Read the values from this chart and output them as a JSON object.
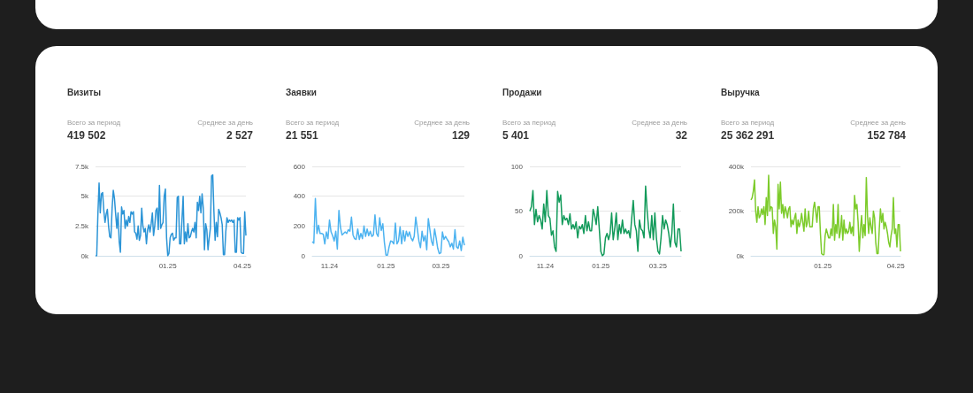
{
  "chart_data": [
    {
      "type": "line",
      "title": "Визиты",
      "annotations": [
        "Всего за период",
        "419 502",
        "Среднее за день",
        "2 527"
      ],
      "grid": "y",
      "ylim": [
        0,
        7500
      ],
      "yticks": [
        {
          "value": 0,
          "label": "0k"
        },
        {
          "value": 2500,
          "label": "2.5k"
        },
        {
          "value": 5000,
          "label": "5k"
        },
        {
          "value": 7500,
          "label": "7.5k"
        }
      ],
      "categories": [
        null,
        null,
        null,
        null,
        null,
        null,
        null,
        null,
        null,
        null,
        null,
        null,
        null,
        null,
        null,
        null,
        null,
        null,
        null,
        null,
        null,
        null,
        null,
        null,
        null,
        null,
        null,
        null,
        null,
        null,
        null,
        null,
        null,
        null,
        null,
        null,
        null,
        null,
        null,
        null,
        null,
        null,
        null,
        null,
        null,
        null,
        null,
        null,
        null,
        null,
        null,
        null,
        null,
        null,
        null,
        null,
        null,
        null,
        null,
        null,
        null,
        "01.25",
        null,
        null,
        null,
        null,
        null,
        null,
        null,
        null,
        null,
        null,
        null,
        null,
        null,
        null,
        null,
        null,
        null,
        null,
        null,
        null,
        null,
        null,
        null,
        null,
        null,
        null,
        null,
        null,
        null,
        null,
        null,
        null,
        null,
        null,
        null,
        null,
        null,
        null,
        null,
        null,
        null,
        null,
        null,
        null,
        null,
        null,
        null,
        null,
        null,
        null,
        null,
        null,
        null,
        null,
        null,
        null,
        null,
        null,
        null,
        null,
        null,
        null,
        "04.25",
        null,
        null,
        null
      ],
      "series": [
        {
          "color": "#2b94d6",
          "values": [
            0,
            0,
            3500,
            6100,
            3600,
            5200,
            5300,
            3800,
            2800,
            3500,
            3900,
            2500,
            1600,
            1500,
            4000,
            5500,
            4800,
            3500,
            2300,
            3600,
            1200,
            300,
            4100,
            3500,
            3800,
            2300,
            3000,
            2500,
            3300,
            2800,
            3700,
            3500,
            3700,
            2000,
            1900,
            1400,
            2500,
            1300,
            1700,
            4000,
            2500,
            2000,
            2300,
            1000,
            2200,
            2600,
            2000,
            2700,
            3600,
            1700,
            2500,
            3800,
            4000,
            2200,
            5900,
            2300,
            2600,
            2800,
            5000,
            5600,
            1500,
            0,
            200,
            1500,
            1800,
            1900,
            1300,
            1500,
            1500,
            4900,
            5000,
            1000,
            1000,
            3000,
            5000,
            1000,
            2000,
            1200,
            2700,
            1500,
            1600,
            2000,
            2300,
            2000,
            2800,
            1500,
            4500,
            3800,
            5000,
            3600,
            5200,
            4000,
            500,
            2700,
            2200,
            500,
            1500,
            2300,
            6700,
            6800,
            3700,
            1300,
            2800,
            1600,
            3900,
            3600,
            3200,
            2600,
            100,
            100,
            2000,
            3200,
            2800,
            3000,
            2900,
            3000,
            2800,
            3000,
            300,
            300,
            3200,
            3000,
            3200,
            300,
            200,
            200,
            3700,
            1700
          ]
        }
      ]
    },
    {
      "type": "line",
      "title": "Заявки",
      "annotations": [
        "Всего за период",
        "21 551",
        "Среднее за день",
        "129"
      ],
      "grid": "y",
      "ylim": [
        0,
        600
      ],
      "yticks": [
        0,
        200,
        400,
        600
      ],
      "categories": [
        null,
        null,
        null,
        null,
        null,
        null,
        null,
        null,
        null,
        null,
        null,
        "11.24",
        null,
        null,
        null,
        null,
        null,
        null,
        null,
        null,
        null,
        null,
        null,
        null,
        null,
        null,
        null,
        null,
        null,
        null,
        null,
        null,
        null,
        null,
        null,
        null,
        null,
        null,
        null,
        null,
        null,
        null,
        null,
        null,
        null,
        null,
        null,
        "01.25",
        null,
        null,
        null,
        null,
        null,
        null,
        null,
        null,
        null,
        null,
        null,
        null,
        null,
        null,
        null,
        null,
        null,
        null,
        null,
        null,
        null,
        null,
        null,
        null,
        null,
        null,
        null,
        null,
        null,
        null,
        null,
        null,
        null,
        null,
        "03.25",
        null,
        null,
        null,
        null,
        null,
        null,
        null,
        null,
        null,
        null,
        null,
        null,
        null,
        null,
        null
      ],
      "series": [
        {
          "color": "#4db3f0",
          "values": [
            95,
            85,
            385,
            150,
            205,
            150,
            150,
            145,
            80,
            160,
            115,
            240,
            160,
            135,
            100,
            165,
            45,
            305,
            190,
            140,
            150,
            160,
            150,
            175,
            165,
            260,
            140,
            115,
            110,
            180,
            110,
            150,
            115,
            200,
            130,
            180,
            135,
            165,
            130,
            140,
            275,
            150,
            130,
            255,
            170,
            215,
            90,
            5,
            5,
            60,
            100,
            95,
            80,
            220,
            80,
            100,
            195,
            80,
            170,
            100,
            165,
            130,
            160,
            120,
            100,
            130,
            260,
            180,
            100,
            55,
            165,
            100,
            135,
            40,
            250,
            175,
            100,
            70,
            180,
            120,
            50,
            15,
            20,
            160,
            110,
            130,
            110,
            95,
            60,
            85,
            45,
            175,
            60,
            50,
            100,
            35,
            125,
            70
          ]
        }
      ]
    },
    {
      "type": "line",
      "title": "Продажи",
      "annotations": [
        "Всего за период",
        "5 401",
        "Среднее за день",
        "32"
      ],
      "grid": "y",
      "ylim": [
        0,
        100
      ],
      "yticks": [
        0,
        50,
        100
      ],
      "categories": [
        null,
        null,
        null,
        null,
        null,
        null,
        null,
        null,
        null,
        null,
        "11.24",
        null,
        null,
        null,
        null,
        null,
        null,
        null,
        null,
        null,
        null,
        null,
        null,
        null,
        null,
        null,
        null,
        null,
        null,
        null,
        null,
        null,
        null,
        null,
        null,
        null,
        null,
        null,
        null,
        null,
        null,
        null,
        null,
        null,
        null,
        null,
        "01.25",
        null,
        null,
        null,
        null,
        null,
        null,
        null,
        null,
        null,
        null,
        null,
        null,
        null,
        null,
        null,
        null,
        null,
        null,
        null,
        null,
        null,
        null,
        null,
        null,
        null,
        null,
        null,
        null,
        null,
        null,
        null,
        null,
        null,
        null,
        null,
        null,
        "03.25",
        null,
        null,
        null,
        null,
        null,
        null,
        null,
        null,
        null,
        null,
        null,
        null,
        null,
        null,
        null
      ],
      "series": [
        {
          "color": "#129a5a",
          "values": [
            50,
            55,
            73,
            35,
            52,
            38,
            45,
            40,
            30,
            58,
            38,
            73,
            45,
            42,
            23,
            28,
            10,
            5,
            72,
            60,
            68,
            35,
            45,
            40,
            42,
            35,
            47,
            30,
            35,
            30,
            38,
            20,
            33,
            30,
            35,
            25,
            45,
            28,
            38,
            28,
            28,
            52,
            45,
            35,
            55,
            30,
            5,
            0,
            2,
            20,
            25,
            18,
            25,
            48,
            18,
            30,
            48,
            18,
            35,
            25,
            40,
            25,
            30,
            25,
            28,
            20,
            42,
            62,
            35,
            28,
            5,
            40,
            30,
            28,
            20,
            78,
            50,
            30,
            20,
            45,
            18,
            48,
            20,
            5,
            2,
            20,
            45,
            30,
            40,
            35,
            25,
            10,
            25,
            58,
            15,
            10,
            30,
            30,
            5
          ]
        }
      ]
    },
    {
      "type": "line",
      "title": "Выручка",
      "annotations": [
        "Всего за период",
        "25 362 291",
        "Среднее за день",
        "152 784"
      ],
      "grid": "y",
      "ylim": [
        0,
        400000
      ],
      "yticks": [
        {
          "value": 0,
          "label": "0k"
        },
        {
          "value": 200000,
          "label": "200k"
        },
        {
          "value": 400000,
          "label": "400k"
        }
      ],
      "categories": [
        null,
        null,
        null,
        null,
        null,
        null,
        null,
        null,
        null,
        null,
        null,
        null,
        null,
        null,
        null,
        null,
        null,
        null,
        null,
        null,
        null,
        null,
        null,
        null,
        null,
        null,
        null,
        null,
        null,
        null,
        null,
        null,
        null,
        null,
        null,
        null,
        null,
        null,
        null,
        null,
        null,
        null,
        null,
        null,
        null,
        null,
        null,
        null,
        null,
        null,
        null,
        null,
        null,
        null,
        null,
        null,
        null,
        null,
        null,
        null,
        null,
        "01.25",
        null,
        null,
        null,
        null,
        null,
        null,
        null,
        null,
        null,
        null,
        null,
        null,
        null,
        null,
        null,
        null,
        null,
        null,
        null,
        null,
        null,
        null,
        null,
        null,
        null,
        null,
        null,
        null,
        null,
        null,
        null,
        null,
        null,
        null,
        null,
        null,
        null,
        null,
        null,
        null,
        null,
        null,
        null,
        null,
        null,
        null,
        null,
        null,
        null,
        null,
        null,
        null,
        null,
        null,
        null,
        null,
        null,
        null,
        null,
        null,
        null,
        "04.25",
        null,
        null,
        null,
        null
      ],
      "series": [
        {
          "color": "#7ccb2a",
          "values": [
            250000,
            260000,
            290000,
            340000,
            200000,
            150000,
            220000,
            170000,
            180000,
            210000,
            185000,
            220000,
            140000,
            260000,
            180000,
            360000,
            200000,
            220000,
            215000,
            100000,
            160000,
            130000,
            30000,
            320000,
            210000,
            330000,
            190000,
            230000,
            170000,
            220000,
            200000,
            170000,
            210000,
            220000,
            130000,
            160000,
            140000,
            170000,
            190000,
            100000,
            160000,
            130000,
            150000,
            190000,
            150000,
            110000,
            210000,
            130000,
            150000,
            200000,
            130000,
            130000,
            130000,
            210000,
            240000,
            200000,
            150000,
            220000,
            220000,
            100000,
            10000,
            5000,
            5000,
            90000,
            120000,
            100000,
            80000,
            80000,
            120000,
            90000,
            230000,
            70000,
            140000,
            100000,
            230000,
            80000,
            110000,
            180000,
            70000,
            160000,
            100000,
            120000,
            100000,
            110000,
            150000,
            100000,
            130000,
            90000,
            270000,
            210000,
            230000,
            150000,
            20000,
            120000,
            180000,
            80000,
            140000,
            90000,
            350000,
            180000,
            100000,
            170000,
            130000,
            100000,
            200000,
            170000,
            60000,
            10000,
            10000,
            120000,
            210000,
            150000,
            190000,
            120000,
            150000,
            130000,
            100000,
            60000,
            40000,
            90000,
            120000,
            260000,
            100000,
            120000,
            40000,
            140000,
            140000,
            20000
          ]
        }
      ]
    }
  ]
}
